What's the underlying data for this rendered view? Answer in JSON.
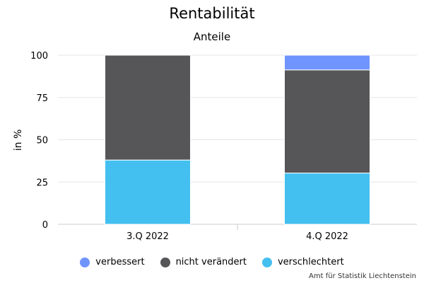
{
  "chart_data": {
    "type": "bar",
    "stacked": true,
    "title": "Rentabilität",
    "subtitle": "Anteile",
    "ylabel": "in %",
    "xlabel": "",
    "ylim": [
      0,
      100
    ],
    "yticks": [
      0,
      25,
      50,
      75,
      100
    ],
    "categories": [
      "3.Q 2022",
      "4.Q 2022"
    ],
    "series": [
      {
        "name": "verbessert",
        "color": "#6f94fc",
        "values": [
          0,
          8.7
        ]
      },
      {
        "name": "nicht verändert",
        "color": "#565658",
        "values": [
          62,
          61
        ]
      },
      {
        "name": "verschlechtert",
        "color": "#43c0ef",
        "values": [
          38,
          30.3
        ]
      }
    ],
    "legend_position": "bottom",
    "grid": true
  },
  "credits": "Amt für Statistik Liechtenstein"
}
